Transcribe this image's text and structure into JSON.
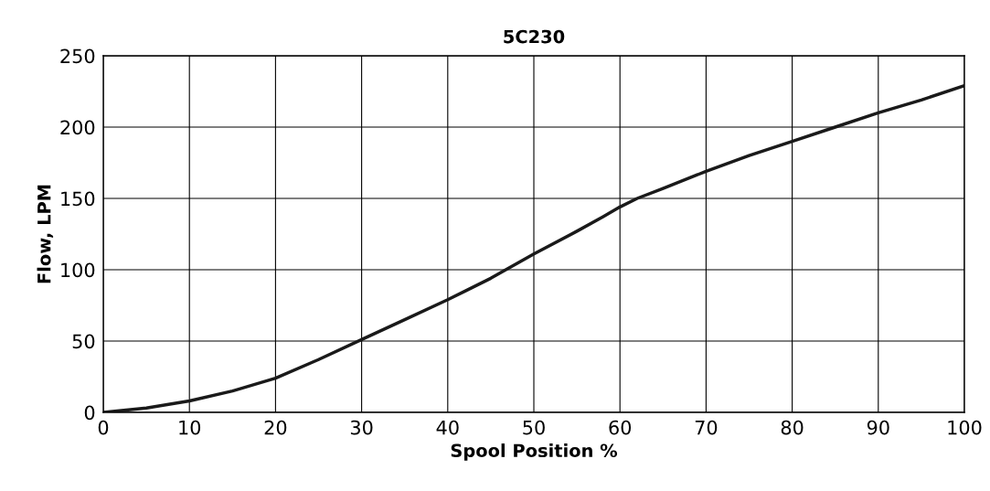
{
  "chart_data": {
    "type": "line",
    "title": "5C230",
    "xlabel": "Spool Position %",
    "ylabel": "Flow, LPM",
    "x": [
      0,
      5,
      10,
      15,
      20,
      25,
      30,
      35,
      40,
      45,
      50,
      55,
      58,
      60,
      62,
      65,
      70,
      75,
      80,
      85,
      90,
      95,
      100
    ],
    "series": [
      {
        "color": "#1a1a1a",
        "values": [
          0,
          3,
          8,
          15,
          24,
          37,
          51,
          65,
          79,
          94,
          111,
          127,
          137,
          144,
          150,
          157,
          169,
          180,
          190,
          200,
          210,
          219,
          229
        ]
      }
    ],
    "xlim": [
      0,
      100
    ],
    "xticks": [
      0,
      10,
      20,
      30,
      40,
      50,
      60,
      70,
      80,
      90,
      100
    ],
    "ylim": [
      0,
      250
    ],
    "yticks": [
      0,
      50,
      100,
      150,
      200,
      250
    ],
    "grid": true,
    "legend": false,
    "marker": "none",
    "line_style": "solid"
  }
}
